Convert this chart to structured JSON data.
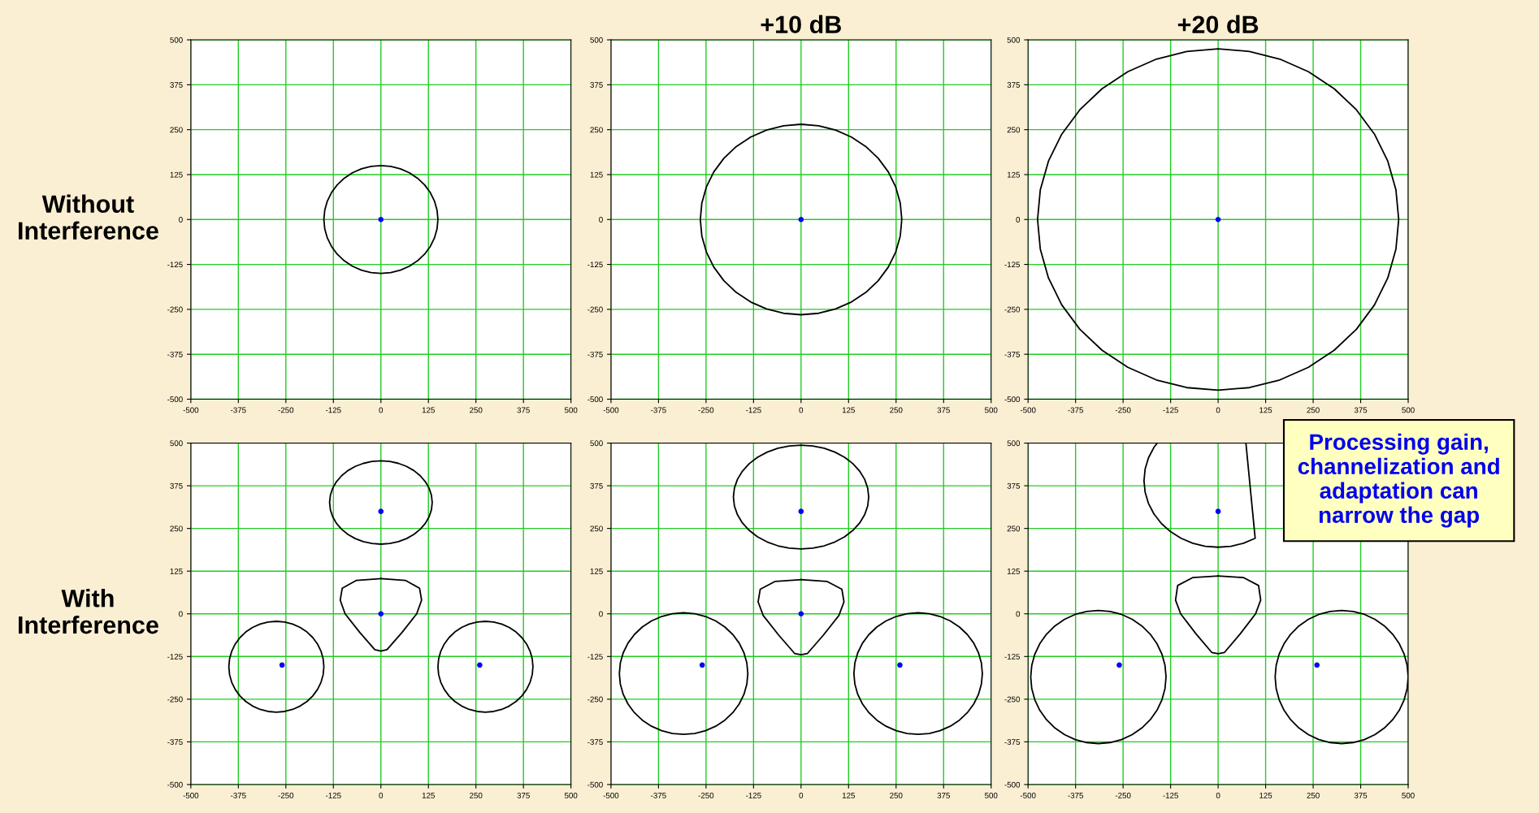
{
  "chart_data": [
    {
      "type": "scatter",
      "ylabel": "Without\nInterference",
      "xlim": [
        -500,
        500
      ],
      "ylim": [
        -500,
        500
      ],
      "xticks": [
        -500,
        -375,
        -250,
        -125,
        0,
        125,
        250,
        375,
        500
      ],
      "yticks": [
        -500,
        -375,
        -250,
        -125,
        0,
        125,
        250,
        375,
        500
      ],
      "grid": true,
      "series": [
        {
          "color": "#0000ff",
          "marker": "circle",
          "x": [
            0
          ],
          "values": [
            0
          ]
        }
      ]
    },
    {
      "type": "scatter",
      "title": "+10 dB",
      "xlim": [
        -500,
        500
      ],
      "ylim": [
        -500,
        500
      ],
      "xticks": [
        -500,
        -375,
        -250,
        -125,
        0,
        125,
        250,
        375,
        500
      ],
      "yticks": [
        -500,
        -375,
        -250,
        -125,
        0,
        125,
        250,
        375,
        500
      ],
      "grid": true,
      "series": [
        {
          "color": "#0000ff",
          "marker": "circle",
          "x": [
            0
          ],
          "values": [
            0
          ]
        }
      ]
    },
    {
      "type": "scatter",
      "title": "+20 dB",
      "xlim": [
        -500,
        500
      ],
      "ylim": [
        -500,
        500
      ],
      "xticks": [
        -500,
        -375,
        -250,
        -125,
        0,
        125,
        250,
        375,
        500
      ],
      "yticks": [
        -500,
        -375,
        -250,
        -125,
        0,
        125,
        250,
        375,
        500
      ],
      "grid": true,
      "series": [
        {
          "color": "#0000ff",
          "marker": "circle",
          "x": [
            0
          ],
          "values": [
            0
          ]
        }
      ]
    },
    {
      "type": "scatter",
      "ylabel": "With\nInterference",
      "xlim": [
        -500,
        500
      ],
      "ylim": [
        -500,
        500
      ],
      "xticks": [
        -500,
        -375,
        -250,
        -125,
        0,
        125,
        250,
        375,
        500
      ],
      "yticks": [
        -500,
        -375,
        -250,
        -125,
        0,
        125,
        250,
        375,
        500
      ],
      "grid": true,
      "series": [
        {
          "color": "#0000ff",
          "marker": "circle",
          "x": [
            0,
            0,
            -260,
            260
          ],
          "values": [
            300,
            0,
            -150,
            -150
          ]
        }
      ]
    },
    {
      "type": "scatter",
      "xlim": [
        -500,
        500
      ],
      "ylim": [
        -500,
        500
      ],
      "xticks": [
        -500,
        -375,
        -250,
        -125,
        0,
        125,
        250,
        375,
        500
      ],
      "yticks": [
        -500,
        -375,
        -250,
        -125,
        0,
        125,
        250,
        375,
        500
      ],
      "grid": true,
      "series": [
        {
          "color": "#0000ff",
          "marker": "circle",
          "x": [
            0,
            0,
            -260,
            260
          ],
          "values": [
            300,
            0,
            -150,
            -150
          ]
        }
      ]
    },
    {
      "type": "scatter",
      "xlim": [
        -500,
        500
      ],
      "ylim": [
        -500,
        500
      ],
      "xticks": [
        -500,
        -375,
        -250,
        -125,
        0,
        125,
        250,
        375,
        500
      ],
      "yticks": [
        -500,
        -375,
        -250,
        -125,
        0,
        125,
        250,
        375,
        500
      ],
      "grid": true,
      "annotations": [
        "Processing gain,\nchannelization and\nadaptation can\nnarrow the gap"
      ],
      "series": [
        {
          "color": "#0000ff",
          "marker": "circle",
          "x": [
            0,
            -260,
            260
          ],
          "values": [
            300,
            -150,
            -150
          ]
        }
      ]
    }
  ]
}
